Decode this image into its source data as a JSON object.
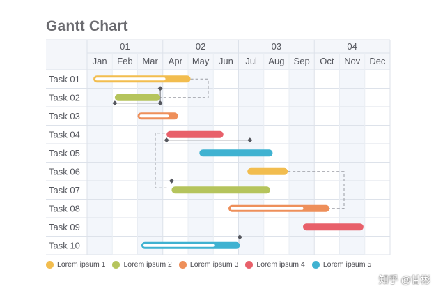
{
  "chart_data": {
    "type": "gantt",
    "title": "Gantt Chart",
    "quarters": [
      "01",
      "02",
      "03",
      "04"
    ],
    "months": [
      "Jan",
      "Feb",
      "Mar",
      "Apr",
      "May",
      "Jun",
      "Jul",
      "Aug",
      "Sep",
      "Oct",
      "Nov",
      "Dec"
    ],
    "tasks": [
      {
        "name": "Task 01",
        "start": 0.25,
        "end": 4.1,
        "series": 0,
        "style": "outline"
      },
      {
        "name": "Task 02",
        "start": 1.1,
        "end": 2.9,
        "series": 1,
        "style": "solid"
      },
      {
        "name": "Task 03",
        "start": 2.0,
        "end": 3.6,
        "series": 2,
        "style": "outline"
      },
      {
        "name": "Task 04",
        "start": 3.15,
        "end": 5.4,
        "series": 3,
        "style": "solid"
      },
      {
        "name": "Task 05",
        "start": 4.45,
        "end": 7.35,
        "series": 4,
        "style": "solid"
      },
      {
        "name": "Task 06",
        "start": 6.35,
        "end": 7.95,
        "series": 0,
        "style": "solid"
      },
      {
        "name": "Task 07",
        "start": 3.35,
        "end": 7.25,
        "series": 1,
        "style": "solid"
      },
      {
        "name": "Task 08",
        "start": 5.6,
        "end": 9.6,
        "series": 2,
        "style": "outline"
      },
      {
        "name": "Task 09",
        "start": 8.55,
        "end": 10.95,
        "series": 3,
        "style": "solid"
      },
      {
        "name": "Task 10",
        "start": 2.15,
        "end": 6.05,
        "series": 4,
        "style": "outline"
      }
    ],
    "series": [
      {
        "name": "Lorem ipsum 1",
        "color": "#f2bd4f"
      },
      {
        "name": "Lorem ipsum 2",
        "color": "#b5c45c"
      },
      {
        "name": "Lorem ipsum 3",
        "color": "#ee8f5a"
      },
      {
        "name": "Lorem ipsum 4",
        "color": "#e8606a"
      },
      {
        "name": "Lorem ipsum 5",
        "color": "#3fb2d1"
      }
    ]
  },
  "watermark": "知乎 @甘彬"
}
